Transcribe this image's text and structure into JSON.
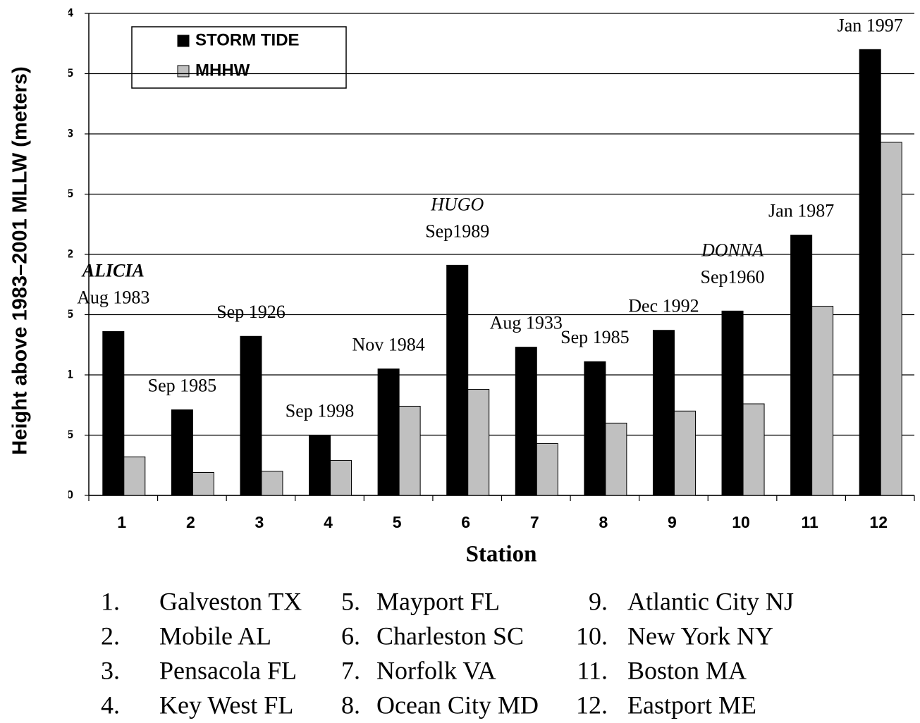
{
  "chart_data": {
    "type": "bar",
    "y_label": "Height above 1983–2001 MLLW (meters)",
    "x_label": "Station",
    "categories": [
      "1",
      "2",
      "3",
      "4",
      "5",
      "6",
      "7",
      "8",
      "9",
      "10",
      "11",
      "12"
    ],
    "series": [
      {
        "name": "STORM TIDE",
        "color": "#000000",
        "values": [
          1.36,
          0.71,
          1.32,
          0.5,
          1.05,
          1.91,
          1.23,
          1.11,
          1.37,
          1.53,
          2.16,
          3.7
        ]
      },
      {
        "name": "MHHW",
        "color": "#c0c0c0",
        "values": [
          0.32,
          0.19,
          0.2,
          0.29,
          0.74,
          0.88,
          0.43,
          0.6,
          0.7,
          0.76,
          1.57,
          2.93
        ]
      }
    ],
    "event_labels": [
      {
        "name": "ALICIA",
        "date": "Aug 1983"
      },
      {
        "date": "Sep 1985"
      },
      {
        "date": "Sep 1926"
      },
      {
        "date": "Sep 1998"
      },
      {
        "date": "Nov 1984"
      },
      {
        "name": "HUGO",
        "date": "Sep1989"
      },
      {
        "date": "Aug 1933"
      },
      {
        "date": "Sep 1985"
      },
      {
        "date": "Dec 1992"
      },
      {
        "name": "DONNA",
        "date": "Sep1960"
      },
      {
        "date": "Jan  1987"
      },
      {
        "date": "Jan 1997"
      }
    ],
    "ylim": [
      0,
      4
    ],
    "yticks": [
      0,
      0.5,
      1,
      1.5,
      2,
      2.5,
      3,
      3.5,
      4
    ],
    "grid": true,
    "legend": "upper left",
    "station_list": [
      {
        "key": "1.",
        "name": "Galveston TX"
      },
      {
        "key": "2.",
        "name": "Mobile AL"
      },
      {
        "key": "3.",
        "name": "Pensacola FL"
      },
      {
        "key": "4.",
        "name": "Key West FL"
      },
      {
        "key": "5.",
        "name": "Mayport FL"
      },
      {
        "key": "6.",
        "name": "Charleston SC"
      },
      {
        "key": "7.",
        "name": "Norfolk VA"
      },
      {
        "key": "8.",
        "name": "Ocean City MD"
      },
      {
        "key": "9.",
        "name": "Atlantic City NJ"
      },
      {
        "key": "10.",
        "name": "New York NY"
      },
      {
        "key": "11.",
        "name": "Boston MA"
      },
      {
        "key": "12.",
        "name": "Eastport ME"
      }
    ]
  }
}
